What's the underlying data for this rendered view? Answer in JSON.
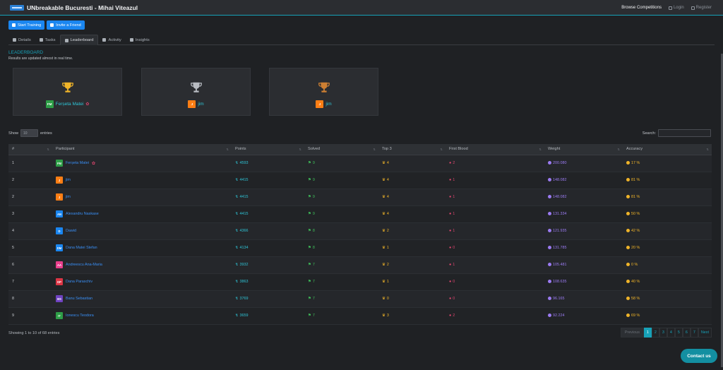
{
  "header": {
    "title": "UNbreakable Bucuresti - Mihai Viteazul",
    "browse": "Browse Competitions",
    "login": "Login",
    "register": "Register"
  },
  "actions": {
    "start_training": "Start Training",
    "invite_friend": "Invite a Friend"
  },
  "tabs": [
    {
      "label": "Details",
      "icon": "home-icon"
    },
    {
      "label": "Tasks",
      "icon": "star-icon"
    },
    {
      "label": "Leaderboard",
      "icon": "trophy-icon",
      "active": true
    },
    {
      "label": "Activity",
      "icon": "bar-chart-icon"
    },
    {
      "label": "Insights",
      "icon": "signal-icon"
    }
  ],
  "leaderboard": {
    "heading": "LEADERBOARD",
    "subtitle": "Results are updated almost in real time.",
    "podium": [
      {
        "initials": "FM",
        "name": "Ferșeta Matei",
        "avatar_color": "#2e9e47",
        "trophy_color": "#f0b429"
      },
      {
        "initials": "J",
        "name": "jim",
        "avatar_color": "#fd7e14",
        "trophy_color": "#b8bcc2"
      },
      {
        "initials": "J",
        "name": "jim",
        "avatar_color": "#fd7e14",
        "trophy_color": "#cd7f32"
      }
    ]
  },
  "table_controls": {
    "show": "Show",
    "show_value": "10",
    "entries": "entries",
    "search": "Search:"
  },
  "columns": [
    "#",
    "Participant",
    "Points",
    "Solved",
    "Top 3",
    "First Blood",
    "Weight",
    "Accuracy"
  ],
  "rows": [
    {
      "rank": "1",
      "initials": "FM",
      "avatar_color": "#2e9e47",
      "name": "Ferșeta Matei",
      "flower": true,
      "points": "4593",
      "solved": "9",
      "top3": "4",
      "first_blood": "2",
      "weight": "200.080",
      "accuracy": "17 %"
    },
    {
      "rank": "2",
      "initials": "J",
      "avatar_color": "#fd7e14",
      "name": "jim",
      "flower": false,
      "points": "4415",
      "solved": "9",
      "top3": "4",
      "first_blood": "1",
      "weight": "148.082",
      "accuracy": "81 %"
    },
    {
      "rank": "2",
      "initials": "J",
      "avatar_color": "#fd7e14",
      "name": "jim",
      "flower": false,
      "points": "4415",
      "solved": "9",
      "top3": "4",
      "first_blood": "1",
      "weight": "148.082",
      "accuracy": "81 %"
    },
    {
      "rank": "3",
      "initials": "AN",
      "avatar_color": "#1a86f0",
      "name": "Alexandru Naskase",
      "flower": false,
      "points": "4415",
      "solved": "9",
      "top3": "4",
      "first_blood": "1",
      "weight": "131.334",
      "accuracy": "50 %"
    },
    {
      "rank": "4",
      "initials": "D",
      "avatar_color": "#1a86f0",
      "name": "Dawid",
      "flower": false,
      "points": "4366",
      "solved": "8",
      "top3": "2",
      "first_blood": "1",
      "weight": "121.935",
      "accuracy": "42 %"
    },
    {
      "rank": "5",
      "initials": "DM",
      "avatar_color": "#1a86f0",
      "name": "Dana Matei Stefan",
      "flower": false,
      "points": "4134",
      "solved": "8",
      "top3": "1",
      "first_blood": "0",
      "weight": "131.785",
      "accuracy": "20 %"
    },
    {
      "rank": "6",
      "initials": "AA",
      "avatar_color": "#e83e8c",
      "name": "Andreescu Ana-Maria",
      "flower": false,
      "points": "3932",
      "solved": "7",
      "top3": "2",
      "first_blood": "1",
      "weight": "105.481",
      "accuracy": "0 %"
    },
    {
      "rank": "7",
      "initials": "DP",
      "avatar_color": "#dc3545",
      "name": "Dana Paraschiv",
      "flower": false,
      "points": "3863",
      "solved": "7",
      "top3": "1",
      "first_blood": "0",
      "weight": "108.635",
      "accuracy": "40 %"
    },
    {
      "rank": "8",
      "initials": "BS",
      "avatar_color": "#6f42c1",
      "name": "Banu Sebastian",
      "flower": false,
      "points": "3769",
      "solved": "7",
      "top3": "0",
      "first_blood": "0",
      "weight": "96.165",
      "accuracy": "58 %"
    },
    {
      "rank": "9",
      "initials": "IT",
      "avatar_color": "#2e9e47",
      "name": "Ionescu Teodora",
      "flower": false,
      "points": "3659",
      "solved": "7",
      "top3": "3",
      "first_blood": "2",
      "weight": "92.224",
      "accuracy": "69 %"
    }
  ],
  "footer": {
    "showing": "Showing 1 to 10 of 68 entries"
  },
  "pagination": {
    "previous": "Previous",
    "pages": [
      "1",
      "2",
      "3",
      "4",
      "5",
      "6",
      "7"
    ],
    "next": "Next"
  },
  "contact": "Contact us",
  "colors": {
    "accent": "#17a2b8",
    "primary": "#1a86f0"
  }
}
